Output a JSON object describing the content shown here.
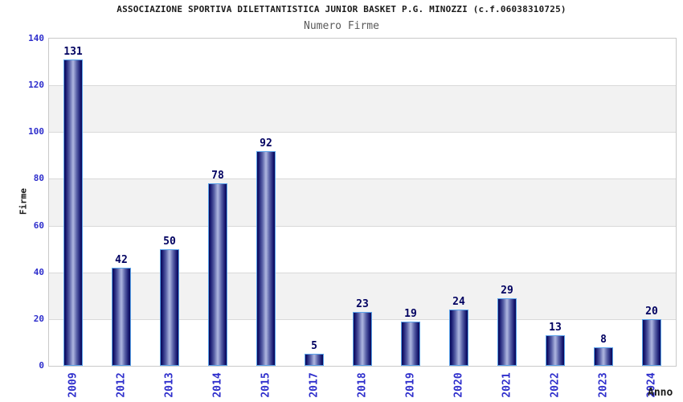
{
  "chart_data": {
    "type": "bar",
    "title": "ASSOCIAZIONE SPORTIVA DILETTANTISTICA JUNIOR BASKET P.G. MINOZZI (c.f.06038310725)",
    "subtitle": "Numero Firme",
    "xlabel": "Anno",
    "ylabel": "Firme",
    "categories": [
      "2009",
      "2012",
      "2013",
      "2014",
      "2015",
      "2017",
      "2018",
      "2019",
      "2020",
      "2021",
      "2022",
      "2023",
      "2024"
    ],
    "values": [
      131,
      42,
      50,
      78,
      92,
      5,
      23,
      19,
      24,
      29,
      13,
      8,
      20
    ],
    "ylim": [
      0,
      140
    ],
    "yticks": [
      0,
      20,
      40,
      60,
      80,
      100,
      120,
      140
    ],
    "grid": "horizontal-only",
    "value_labels": true,
    "legend": "none",
    "colors": {
      "bar_edge": "#0a0a58",
      "bar_dark": "#16166e",
      "bar_mid": "#5a62a8",
      "bar_highlight": "#a8b0dc",
      "bar_border": "#5ba3ea",
      "value_label": "#000060",
      "tick_label": "#2e2ecc",
      "band_gray": "#f2f2f2",
      "gridline": "#d9d9d9",
      "plot_border": "#c9c9c9",
      "title": "#1a1a1a",
      "subtitle": "#5a5a5a"
    }
  }
}
